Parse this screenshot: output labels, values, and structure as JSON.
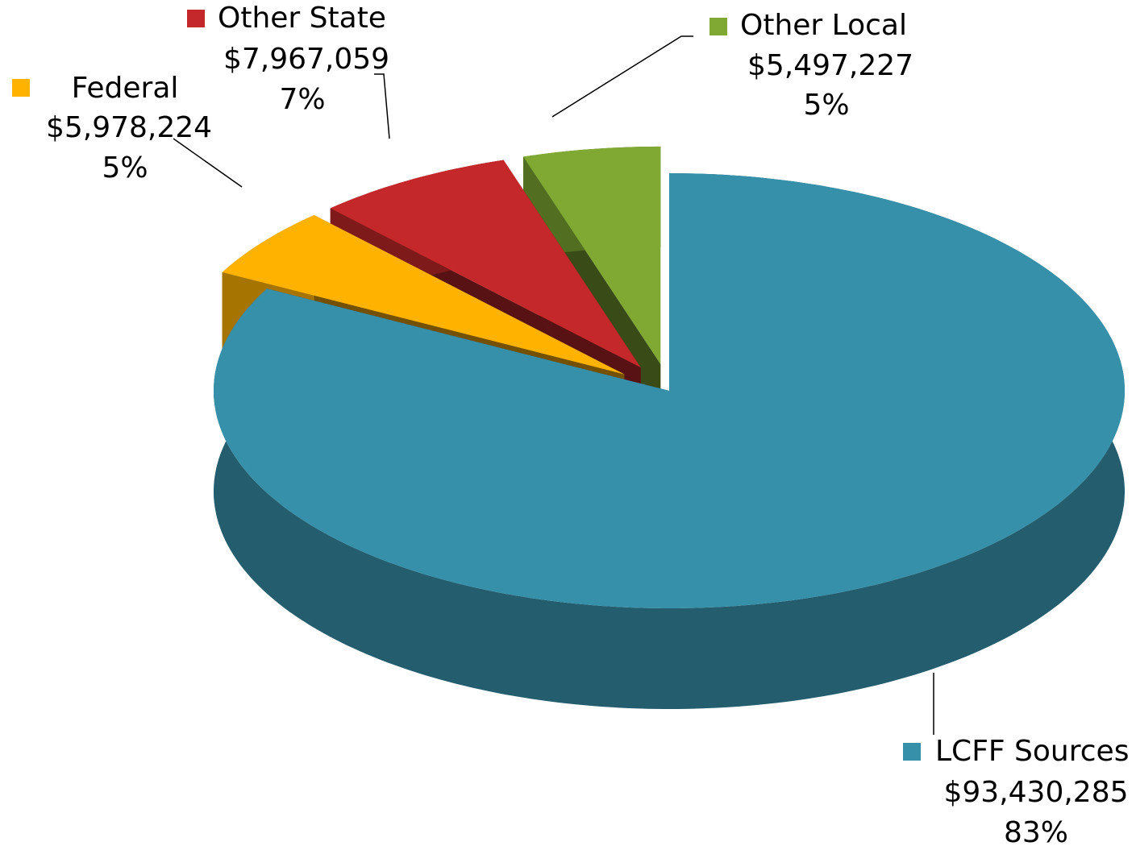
{
  "chart_data": {
    "type": "pie",
    "categories": [
      "LCFF Sources",
      "Federal",
      "Other State",
      "Other Local"
    ],
    "values": [
      93430285,
      5978224,
      7967059,
      5497227
    ],
    "value_labels": [
      "$93,430,285",
      "$5,978,224",
      "$7,967,059",
      "$5,497,227"
    ],
    "percents": [
      83,
      5,
      7,
      5
    ],
    "percent_labels": [
      "83%",
      "5%",
      "7%",
      "5%"
    ],
    "colors": [
      "#3790a9",
      "#ffb300",
      "#c4282a",
      "#7fa933"
    ]
  }
}
